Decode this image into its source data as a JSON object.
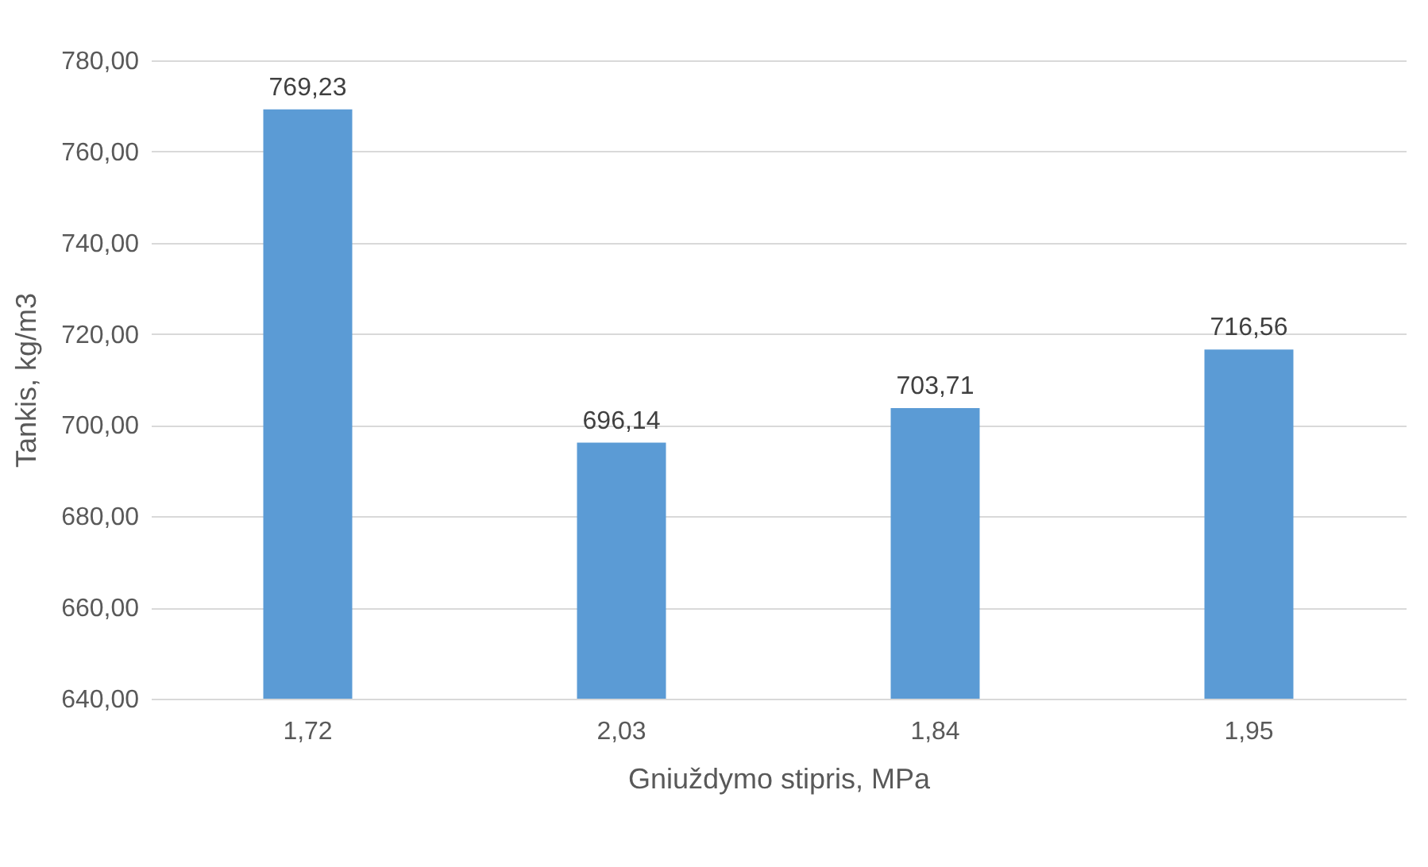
{
  "chart_data": {
    "type": "bar",
    "xlabel": "Gniuždymo stipris, MPa",
    "ylabel": "Tankis, kg/m3",
    "categories": [
      "1,72",
      "2,03",
      "1,84",
      "1,95"
    ],
    "values": [
      769.23,
      696.14,
      703.71,
      716.56
    ],
    "value_labels": [
      "769,23",
      "696,14",
      "703,71",
      "716,56"
    ],
    "color": "#5b9bd5",
    "ylim": [
      640,
      780
    ],
    "yticks": [
      {
        "value": 640,
        "label": "640,00"
      },
      {
        "value": 660,
        "label": "660,00"
      },
      {
        "value": 680,
        "label": "680,00"
      },
      {
        "value": 700,
        "label": "700,00"
      },
      {
        "value": 720,
        "label": "720,00"
      },
      {
        "value": 740,
        "label": "740,00"
      },
      {
        "value": 760,
        "label": "760,00"
      },
      {
        "value": 780,
        "label": "780,00"
      }
    ],
    "grid": "y"
  }
}
